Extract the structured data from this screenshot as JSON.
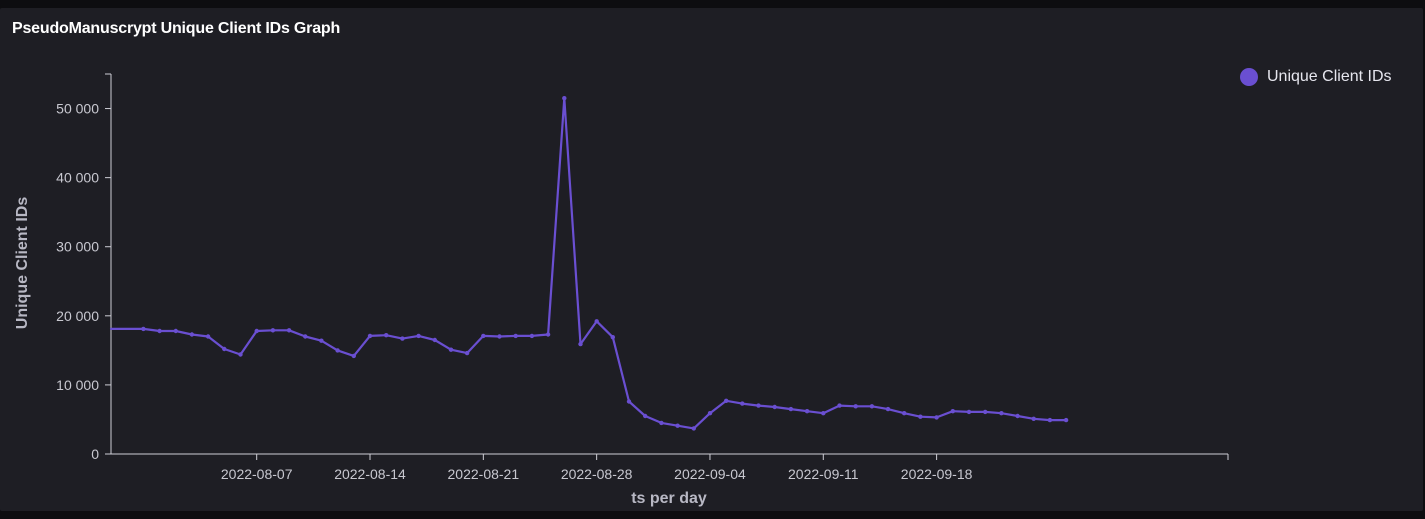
{
  "chart_data": {
    "type": "line",
    "title": "PseudoManuscrypt Unique Client IDs Graph",
    "xlabel": "ts per day",
    "ylabel": "Unique Client IDs",
    "xlim": [
      "2022-07-29",
      "2022-10-06"
    ],
    "ylim": [
      0,
      55000
    ],
    "x_ticks": [
      "2022-08-07",
      "2022-08-14",
      "2022-08-21",
      "2022-08-28",
      "2022-09-04",
      "2022-09-11",
      "2022-09-18"
    ],
    "y_ticks": [
      0,
      10000,
      20000,
      30000,
      40000,
      50000
    ],
    "y_tick_labels": [
      "0",
      "10 000",
      "20 000",
      "30 000",
      "40 000",
      "50 000"
    ],
    "grid": false,
    "legend": "top-right",
    "series": [
      {
        "name": "Unique Client IDs",
        "color": "#6a4fd1",
        "x": [
          "2022-07-31",
          "2022-08-01",
          "2022-08-02",
          "2022-08-03",
          "2022-08-04",
          "2022-08-05",
          "2022-08-06",
          "2022-08-07",
          "2022-08-08",
          "2022-08-09",
          "2022-08-10",
          "2022-08-11",
          "2022-08-12",
          "2022-08-13",
          "2022-08-14",
          "2022-08-15",
          "2022-08-16",
          "2022-08-17",
          "2022-08-18",
          "2022-08-19",
          "2022-08-20",
          "2022-08-21",
          "2022-08-22",
          "2022-08-23",
          "2022-08-24",
          "2022-08-25",
          "2022-08-26",
          "2022-08-27",
          "2022-08-28",
          "2022-08-29",
          "2022-08-30",
          "2022-08-31",
          "2022-09-01",
          "2022-09-02",
          "2022-09-03",
          "2022-09-04",
          "2022-09-05",
          "2022-09-06",
          "2022-09-07",
          "2022-09-08",
          "2022-09-09",
          "2022-09-10",
          "2022-09-11",
          "2022-09-12",
          "2022-09-13",
          "2022-09-14",
          "2022-09-15",
          "2022-09-16",
          "2022-09-17",
          "2022-09-18",
          "2022-09-19",
          "2022-09-20",
          "2022-09-21",
          "2022-09-22",
          "2022-09-23",
          "2022-09-24",
          "2022-09-25",
          "2022-09-26"
        ],
        "values": [
          18100,
          17800,
          17800,
          17300,
          17000,
          15200,
          14400,
          17800,
          17900,
          17900,
          17000,
          16400,
          15000,
          14200,
          17100,
          17200,
          16700,
          17100,
          16500,
          15100,
          14600,
          17100,
          17000,
          17100,
          17100,
          17300,
          51500,
          15900,
          19200,
          16900,
          7600,
          5500,
          4500,
          4100,
          3700,
          5900,
          7700,
          7300,
          7000,
          6800,
          6500,
          6200,
          5900,
          7000,
          6900,
          6900,
          6500,
          5900,
          5400,
          5300,
          6200,
          6100,
          6100,
          5900,
          5500,
          5100,
          4900,
          4900
        ]
      }
    ]
  }
}
